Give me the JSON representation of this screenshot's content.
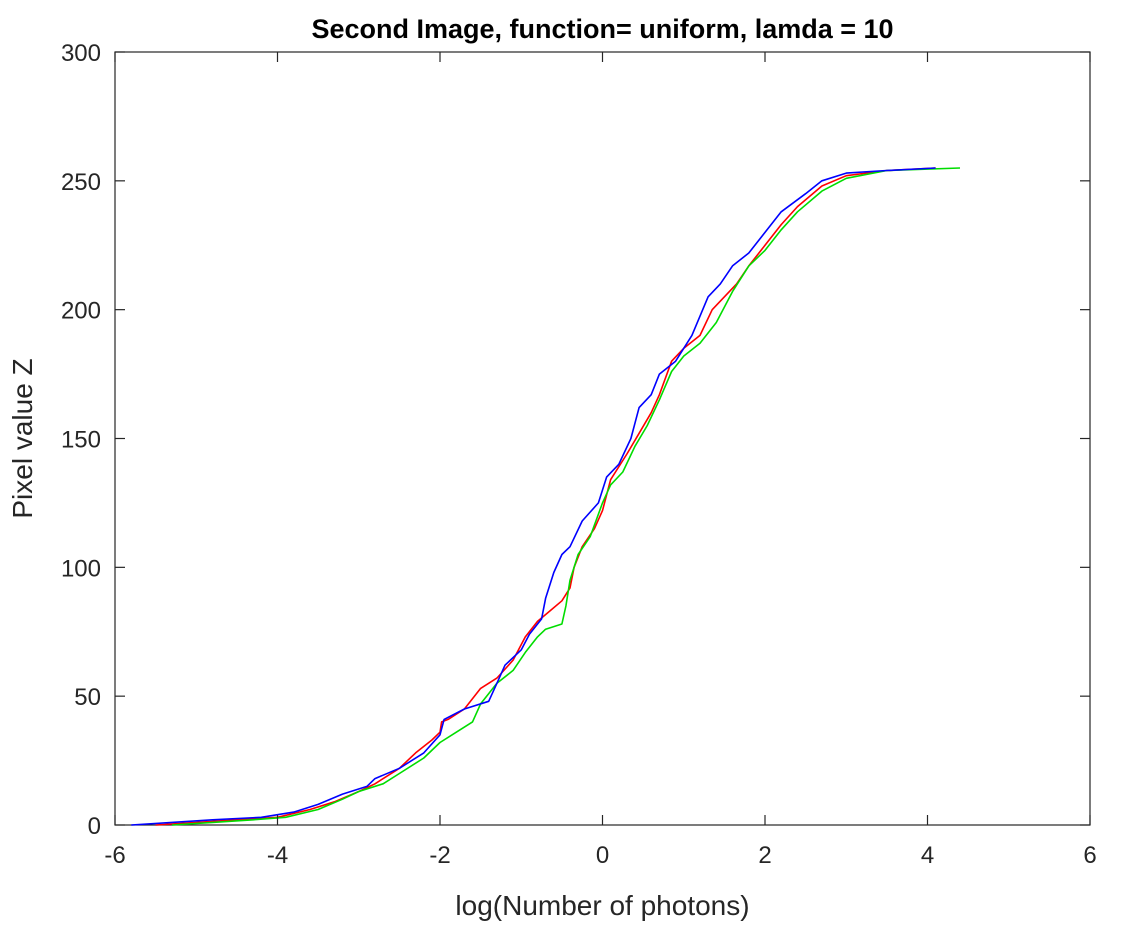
{
  "chart_data": {
    "type": "line",
    "title": "Second Image, function= uniform, lamda = 10",
    "xlabel": "log(Number of photons)",
    "ylabel": "Pixel value Z",
    "xlim": [
      -6,
      6
    ],
    "ylim": [
      0,
      300
    ],
    "xticks": [
      -6,
      -4,
      -2,
      0,
      2,
      4,
      6
    ],
    "yticks": [
      0,
      50,
      100,
      150,
      200,
      250,
      300
    ],
    "xtick_labels": [
      "-6",
      "-4",
      "-2",
      "0",
      "2",
      "4",
      "6"
    ],
    "ytick_labels": [
      "0",
      "50",
      "100",
      "150",
      "200",
      "250",
      "300"
    ],
    "grid": false,
    "series": [
      {
        "color": "#ff0000",
        "points": [
          [
            -5.5,
            0
          ],
          [
            -5.0,
            1
          ],
          [
            -4.5,
            2
          ],
          [
            -4.0,
            3
          ],
          [
            -3.6,
            6
          ],
          [
            -3.3,
            9
          ],
          [
            -3.0,
            13
          ],
          [
            -2.8,
            16
          ],
          [
            -2.5,
            22
          ],
          [
            -2.3,
            28
          ],
          [
            -2.1,
            33
          ],
          [
            -2.0,
            36
          ],
          [
            -1.98,
            40
          ],
          [
            -1.9,
            41
          ],
          [
            -1.7,
            45
          ],
          [
            -1.5,
            53
          ],
          [
            -1.3,
            57
          ],
          [
            -1.1,
            64
          ],
          [
            -0.95,
            73
          ],
          [
            -0.8,
            79
          ],
          [
            -0.65,
            83
          ],
          [
            -0.5,
            87
          ],
          [
            -0.4,
            92
          ],
          [
            -0.35,
            100
          ],
          [
            -0.25,
            108
          ],
          [
            -0.1,
            115
          ],
          [
            0.0,
            122
          ],
          [
            0.1,
            134
          ],
          [
            0.3,
            144
          ],
          [
            0.45,
            152
          ],
          [
            0.6,
            160
          ],
          [
            0.7,
            167
          ],
          [
            0.85,
            180
          ],
          [
            1.0,
            185
          ],
          [
            1.2,
            190
          ],
          [
            1.35,
            200
          ],
          [
            1.5,
            205
          ],
          [
            1.65,
            210
          ],
          [
            1.8,
            217
          ],
          [
            2.0,
            225
          ],
          [
            2.2,
            233
          ],
          [
            2.4,
            240
          ],
          [
            2.7,
            248
          ],
          [
            3.0,
            252
          ],
          [
            3.5,
            254
          ],
          [
            4.1,
            255
          ]
        ]
      },
      {
        "color": "#00dd00",
        "points": [
          [
            -5.3,
            0
          ],
          [
            -4.8,
            1
          ],
          [
            -4.3,
            2
          ],
          [
            -3.9,
            3
          ],
          [
            -3.5,
            6
          ],
          [
            -3.2,
            10
          ],
          [
            -3.0,
            13
          ],
          [
            -2.7,
            16
          ],
          [
            -2.5,
            20
          ],
          [
            -2.2,
            26
          ],
          [
            -2.0,
            32
          ],
          [
            -1.8,
            36
          ],
          [
            -1.6,
            40
          ],
          [
            -1.5,
            47
          ],
          [
            -1.3,
            55
          ],
          [
            -1.1,
            60
          ],
          [
            -0.95,
            67
          ],
          [
            -0.8,
            73
          ],
          [
            -0.7,
            76
          ],
          [
            -0.5,
            78
          ],
          [
            -0.45,
            85
          ],
          [
            -0.4,
            95
          ],
          [
            -0.3,
            105
          ],
          [
            -0.15,
            112
          ],
          [
            0.0,
            125
          ],
          [
            0.1,
            132
          ],
          [
            0.25,
            137
          ],
          [
            0.4,
            147
          ],
          [
            0.55,
            155
          ],
          [
            0.7,
            165
          ],
          [
            0.85,
            176
          ],
          [
            1.0,
            182
          ],
          [
            1.2,
            187
          ],
          [
            1.4,
            195
          ],
          [
            1.6,
            207
          ],
          [
            1.8,
            217
          ],
          [
            2.0,
            223
          ],
          [
            2.2,
            231
          ],
          [
            2.4,
            238
          ],
          [
            2.7,
            246
          ],
          [
            3.0,
            251
          ],
          [
            3.5,
            254
          ],
          [
            4.4,
            255
          ]
        ]
      },
      {
        "color": "#0000ff",
        "points": [
          [
            -5.8,
            0
          ],
          [
            -5.3,
            1
          ],
          [
            -4.8,
            2
          ],
          [
            -4.2,
            3
          ],
          [
            -3.8,
            5
          ],
          [
            -3.5,
            8
          ],
          [
            -3.2,
            12
          ],
          [
            -2.9,
            15
          ],
          [
            -2.8,
            18
          ],
          [
            -2.5,
            22
          ],
          [
            -2.2,
            28
          ],
          [
            -2.0,
            35
          ],
          [
            -1.95,
            41
          ],
          [
            -1.7,
            45
          ],
          [
            -1.4,
            48
          ],
          [
            -1.3,
            55
          ],
          [
            -1.2,
            62
          ],
          [
            -1.0,
            68
          ],
          [
            -0.9,
            74
          ],
          [
            -0.75,
            80
          ],
          [
            -0.7,
            88
          ],
          [
            -0.6,
            98
          ],
          [
            -0.5,
            105
          ],
          [
            -0.4,
            108
          ],
          [
            -0.25,
            118
          ],
          [
            -0.05,
            125
          ],
          [
            0.0,
            130
          ],
          [
            0.05,
            135
          ],
          [
            0.2,
            140
          ],
          [
            0.35,
            150
          ],
          [
            0.45,
            162
          ],
          [
            0.6,
            167
          ],
          [
            0.7,
            175
          ],
          [
            0.9,
            180
          ],
          [
            1.1,
            190
          ],
          [
            1.3,
            205
          ],
          [
            1.45,
            210
          ],
          [
            1.6,
            217
          ],
          [
            1.8,
            222
          ],
          [
            2.0,
            230
          ],
          [
            2.2,
            238
          ],
          [
            2.5,
            245
          ],
          [
            2.7,
            250
          ],
          [
            3.0,
            253
          ],
          [
            3.5,
            254
          ],
          [
            4.1,
            255
          ]
        ]
      }
    ]
  }
}
